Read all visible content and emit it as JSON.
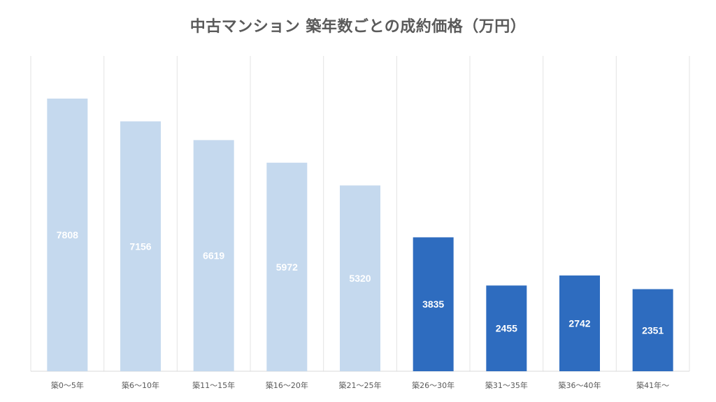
{
  "chart_data": {
    "type": "bar",
    "title": "中古マンション 築年数ごとの成約価格（万円）",
    "categories": [
      "築0〜5年",
      "築6〜10年",
      "築11〜15年",
      "築16〜20年",
      "築21〜25年",
      "築26〜30年",
      "築31〜35年",
      "築36〜40年",
      "築41年〜"
    ],
    "values": [
      7808,
      7156,
      6619,
      5972,
      5320,
      3835,
      2455,
      2742,
      2351
    ],
    "bar_colors": [
      "#c5d9ee",
      "#c5d9ee",
      "#c5d9ee",
      "#c5d9ee",
      "#c5d9ee",
      "#2e6cbf",
      "#2e6cbf",
      "#2e6cbf",
      "#2e6cbf"
    ],
    "ylim": [
      0,
      8000
    ],
    "grid": true,
    "legend": "none",
    "xlabel": "",
    "ylabel": ""
  }
}
